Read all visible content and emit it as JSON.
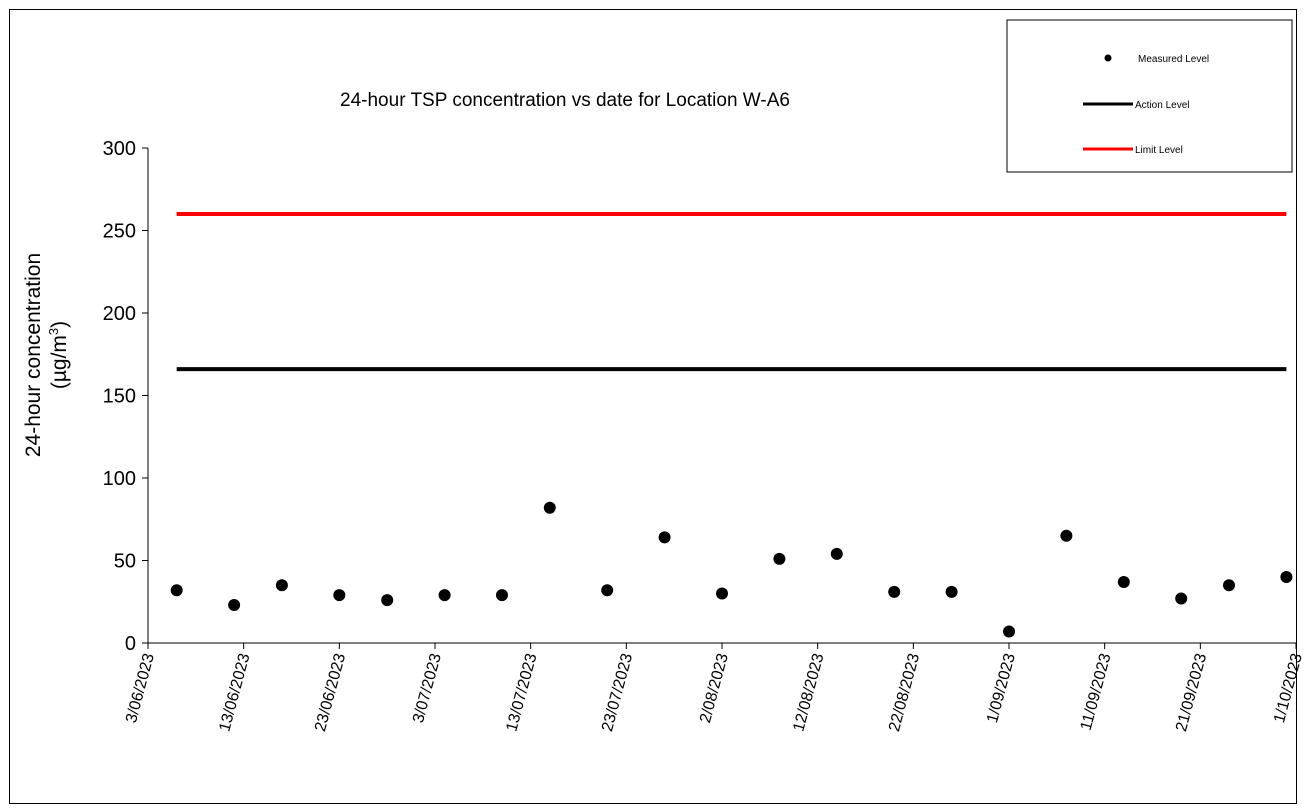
{
  "chart_data": {
    "type": "scatter",
    "title": "24-hour TSP concentration vs date for Location W-A6",
    "ylabel_line1": "24-hour concentration",
    "ylabel_line2_prefix": "(µg/m",
    "ylabel_line2_sup": "3",
    "ylabel_line2_suffix": ")",
    "xlabel": "",
    "ylim": [
      0,
      300
    ],
    "yticks": [
      0,
      50,
      100,
      150,
      200,
      250,
      300
    ],
    "xlim": [
      "2023-06-03",
      "2023-10-01"
    ],
    "xticks": [
      {
        "date": "2023-06-03",
        "label": "3/06/2023"
      },
      {
        "date": "2023-06-13",
        "label": "13/06/2023"
      },
      {
        "date": "2023-06-23",
        "label": "23/06/2023"
      },
      {
        "date": "2023-07-03",
        "label": "3/07/2023"
      },
      {
        "date": "2023-07-13",
        "label": "13/07/2023"
      },
      {
        "date": "2023-07-23",
        "label": "23/07/2023"
      },
      {
        "date": "2023-08-02",
        "label": "2/08/2023"
      },
      {
        "date": "2023-08-12",
        "label": "12/08/2023"
      },
      {
        "date": "2023-08-22",
        "label": "22/08/2023"
      },
      {
        "date": "2023-09-01",
        "label": "1/09/2023"
      },
      {
        "date": "2023-09-11",
        "label": "11/09/2023"
      },
      {
        "date": "2023-09-21",
        "label": "21/09/2023"
      },
      {
        "date": "2023-10-01",
        "label": "1/10/2023"
      }
    ],
    "grid": false,
    "legend_position": "top-right",
    "series": [
      {
        "name": "Measured Level",
        "kind": "scatter",
        "color": "#000000",
        "points": [
          {
            "x": "2023-06-06",
            "y": 32
          },
          {
            "x": "2023-06-12",
            "y": 23
          },
          {
            "x": "2023-06-17",
            "y": 35
          },
          {
            "x": "2023-06-23",
            "y": 29
          },
          {
            "x": "2023-06-28",
            "y": 26
          },
          {
            "x": "2023-07-04",
            "y": 29
          },
          {
            "x": "2023-07-10",
            "y": 29
          },
          {
            "x": "2023-07-15",
            "y": 82
          },
          {
            "x": "2023-07-21",
            "y": 32
          },
          {
            "x": "2023-07-27",
            "y": 64
          },
          {
            "x": "2023-08-02",
            "y": 30
          },
          {
            "x": "2023-08-08",
            "y": 51
          },
          {
            "x": "2023-08-14",
            "y": 54
          },
          {
            "x": "2023-08-20",
            "y": 31
          },
          {
            "x": "2023-08-26",
            "y": 31
          },
          {
            "x": "2023-09-01",
            "y": 7
          },
          {
            "x": "2023-09-07",
            "y": 65
          },
          {
            "x": "2023-09-13",
            "y": 37
          },
          {
            "x": "2023-09-19",
            "y": 27
          },
          {
            "x": "2023-09-24",
            "y": 35
          },
          {
            "x": "2023-09-30",
            "y": 40
          }
        ]
      },
      {
        "name": "Action Level",
        "kind": "line",
        "color": "#000000",
        "points": [
          {
            "x": "2023-06-06",
            "y": 166
          },
          {
            "x": "2023-09-30",
            "y": 166
          }
        ]
      },
      {
        "name": "Limit Level",
        "kind": "line",
        "color": "#ff0000",
        "points": [
          {
            "x": "2023-06-06",
            "y": 260
          },
          {
            "x": "2023-09-30",
            "y": 260
          }
        ]
      }
    ]
  }
}
